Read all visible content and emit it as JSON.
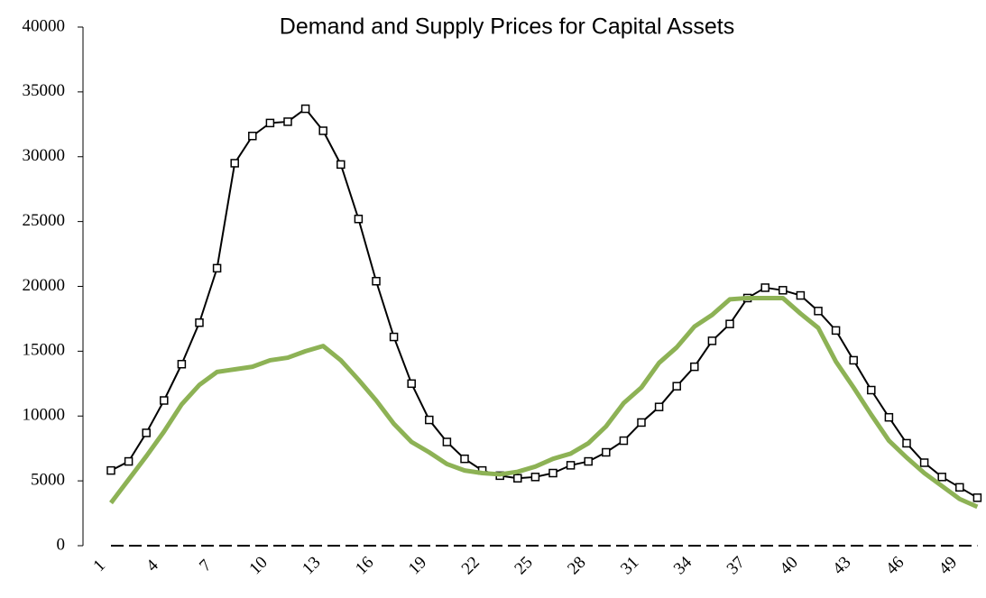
{
  "chart_data": {
    "type": "line",
    "title": "Demand and Supply Prices for Capital Assets",
    "categories": [
      "1",
      null,
      null,
      "4",
      null,
      null,
      "7",
      null,
      null,
      "10",
      null,
      null,
      "13",
      null,
      null,
      "16",
      null,
      null,
      "19",
      null,
      null,
      "22",
      null,
      null,
      "25",
      null,
      null,
      "28",
      null,
      null,
      "31",
      null,
      null,
      "34",
      null,
      null,
      "37",
      null,
      null,
      "40",
      null,
      null,
      "43",
      null,
      null,
      "46",
      null,
      null,
      "49",
      null
    ],
    "series": [
      {
        "color": "#000000",
        "marker": "square",
        "dash": false,
        "width": 2,
        "values": [
          5800,
          6500,
          8700,
          11200,
          14000,
          17200,
          21400,
          29500,
          31600,
          32600,
          32700,
          33700,
          32000,
          29400,
          25200,
          20400,
          16100,
          12500,
          9700,
          8000,
          6700,
          5800,
          5400,
          5200,
          5300,
          5600,
          6200,
          6500,
          7200,
          8100,
          9500,
          10700,
          12300,
          13800,
          15800,
          17100,
          19100,
          19900,
          19700,
          19300,
          18100,
          16600,
          14300,
          12000,
          9900,
          7900,
          6400,
          5300,
          4500,
          3700
        ]
      },
      {
        "color": "#8db255",
        "marker": "none",
        "dash": false,
        "width": 5,
        "values": [
          3300,
          5100,
          6900,
          8800,
          10900,
          12400,
          13400,
          13600,
          13800,
          14300,
          14500,
          15000,
          15400,
          14300,
          12800,
          11200,
          9400,
          8000,
          7200,
          6300,
          5800,
          5600,
          5500,
          5700,
          6100,
          6700,
          7100,
          7900,
          9200,
          11000,
          12200,
          14100,
          15300,
          16900,
          17800,
          19000,
          19100,
          19100,
          19100,
          17900,
          16800,
          14200,
          12200,
          10100,
          8100,
          6800,
          5600,
          4600,
          3600,
          3000
        ]
      },
      {
        "color": "#000000",
        "marker": "none",
        "dash": true,
        "width": 2,
        "values": [
          0,
          0,
          0,
          0,
          0,
          0,
          0,
          0,
          0,
          0,
          0,
          0,
          0,
          0,
          0,
          0,
          0,
          0,
          0,
          0,
          0,
          0,
          0,
          0,
          0,
          0,
          0,
          0,
          0,
          0,
          0,
          0,
          0,
          0,
          0,
          0,
          0,
          0,
          0,
          0,
          0,
          0,
          0,
          0,
          0,
          0,
          0,
          0,
          0,
          0
        ]
      }
    ],
    "ylim": [
      0,
      40000
    ],
    "yticks": [
      0,
      5000,
      10000,
      15000,
      20000,
      25000,
      30000,
      35000,
      40000
    ],
    "grid": false
  }
}
